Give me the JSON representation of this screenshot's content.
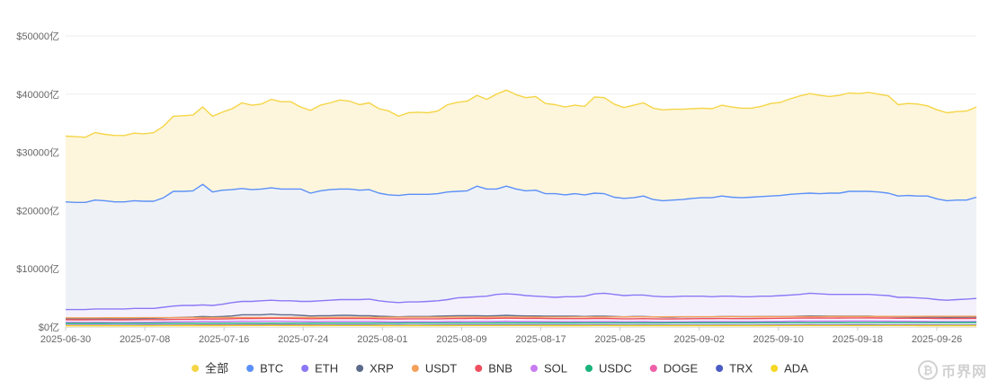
{
  "watermark": {
    "text": "币界网",
    "icon": "bitcoin-logo-icon"
  },
  "chart_data": {
    "type": "area",
    "y_unit": "亿",
    "y_tick_labels": [
      "$0亿",
      "$10000亿",
      "$20000亿",
      "$30000亿",
      "$40000亿",
      "$50000亿"
    ],
    "y_ticks": [
      0,
      10000,
      20000,
      30000,
      40000,
      50000
    ],
    "ylim": [
      0,
      50000
    ],
    "x_tick_labels": [
      "2025-06-30",
      "2025-07-08",
      "2025-07-16",
      "2025-07-24",
      "2025-08-01",
      "2025-08-09",
      "2025-08-17",
      "2025-08-25",
      "2025-09-02",
      "2025-09-10",
      "2025-09-18",
      "2025-09-26"
    ],
    "x_start": "2025-06-30",
    "x_end": "2025-09-30",
    "grid": true,
    "legend_position": "bottom",
    "series": [
      {
        "name": "全部",
        "color": "#f5d547",
        "fill": "#fdf6dc",
        "values": [
          32800,
          32700,
          32600,
          33400,
          33100,
          32900,
          32900,
          33300,
          33200,
          33400,
          34500,
          36200,
          36300,
          36400,
          37800,
          36200,
          36900,
          37500,
          38500,
          38100,
          38300,
          39100,
          38700,
          38700,
          37800,
          37200,
          38100,
          38500,
          39000,
          38800,
          38200,
          38500,
          37500,
          37100,
          36200,
          36800,
          36900,
          36800,
          37100,
          38200,
          38600,
          38800,
          39800,
          39100,
          40000,
          40700,
          39900,
          39400,
          39600,
          38400,
          38200,
          37800,
          38100,
          37900,
          39500,
          39400,
          38300,
          37700,
          38100,
          38500,
          37600,
          37300,
          37400,
          37400,
          37500,
          37600,
          37500,
          38100,
          37800,
          37600,
          37600,
          37900,
          38400,
          38600,
          39200,
          39700,
          40100,
          39800,
          39600,
          39800,
          40200,
          40100,
          40300,
          40000,
          39700,
          38200,
          38400,
          38300,
          38000,
          37300,
          36800,
          37000,
          37100,
          37800
        ]
      },
      {
        "name": "BTC",
        "color": "#5b8ff9",
        "fill": "#eef2f7",
        "values": [
          21500,
          21400,
          21400,
          21800,
          21700,
          21500,
          21500,
          21700,
          21600,
          21600,
          22200,
          23300,
          23300,
          23400,
          24500,
          23200,
          23500,
          23600,
          23800,
          23600,
          23700,
          23900,
          23700,
          23700,
          23700,
          23000,
          23400,
          23600,
          23700,
          23700,
          23500,
          23600,
          23000,
          22700,
          22600,
          22800,
          22800,
          22800,
          22900,
          23200,
          23300,
          23400,
          24200,
          23700,
          23700,
          24200,
          23700,
          23400,
          23500,
          22900,
          22900,
          22700,
          22900,
          22700,
          23000,
          22900,
          22300,
          22100,
          22200,
          22500,
          21900,
          21700,
          21800,
          21900,
          22100,
          22200,
          22200,
          22500,
          22300,
          22200,
          22300,
          22400,
          22500,
          22600,
          22800,
          22900,
          23000,
          22900,
          23000,
          23000,
          23300,
          23300,
          23300,
          23200,
          23000,
          22500,
          22600,
          22500,
          22500,
          22000,
          21700,
          21800,
          21800,
          22300
        ]
      },
      {
        "name": "ETH",
        "color": "#8b78f6",
        "fill": "#f4f1fd",
        "values": [
          3000,
          3000,
          3000,
          3100,
          3100,
          3100,
          3100,
          3200,
          3200,
          3200,
          3400,
          3600,
          3700,
          3700,
          3800,
          3700,
          3900,
          4200,
          4400,
          4400,
          4500,
          4600,
          4500,
          4500,
          4400,
          4400,
          4500,
          4600,
          4700,
          4700,
          4700,
          4800,
          4500,
          4300,
          4200,
          4300,
          4300,
          4400,
          4500,
          4700,
          5000,
          5100,
          5200,
          5300,
          5600,
          5700,
          5600,
          5400,
          5300,
          5200,
          5100,
          5200,
          5200,
          5300,
          5700,
          5800,
          5600,
          5400,
          5500,
          5500,
          5300,
          5200,
          5200,
          5300,
          5300,
          5300,
          5200,
          5300,
          5300,
          5200,
          5200,
          5300,
          5300,
          5400,
          5500,
          5600,
          5800,
          5700,
          5600,
          5600,
          5600,
          5600,
          5600,
          5500,
          5400,
          5100,
          5100,
          5000,
          4900,
          4700,
          4600,
          4700,
          4800,
          4900
        ]
      },
      {
        "name": "XRP",
        "color": "#5d6b8a",
        "fill": "none",
        "values": [
          1400,
          1400,
          1400,
          1400,
          1400,
          1400,
          1400,
          1400,
          1450,
          1500,
          1550,
          1600,
          1650,
          1700,
          1800,
          1750,
          1800,
          1900,
          2100,
          2100,
          2100,
          2200,
          2100,
          2100,
          2000,
          1900,
          1950,
          1950,
          2000,
          2000,
          1950,
          1950,
          1850,
          1800,
          1750,
          1800,
          1800,
          1800,
          1850,
          1900,
          1950,
          1950,
          1950,
          1900,
          1950,
          2000,
          1950,
          1900,
          1900,
          1850,
          1850,
          1850,
          1850,
          1800,
          1850,
          1850,
          1800,
          1750,
          1800,
          1800,
          1750,
          1700,
          1700,
          1750,
          1750,
          1750,
          1750,
          1800,
          1800,
          1780,
          1780,
          1800,
          1800,
          1800,
          1800,
          1850,
          1900,
          1880,
          1850,
          1850,
          1850,
          1850,
          1850,
          1800,
          1800,
          1750,
          1750,
          1700,
          1700,
          1680,
          1650,
          1660,
          1680,
          1700
        ]
      },
      {
        "name": "USDT",
        "color": "#f6a15a",
        "fill": "none",
        "values": [
          1580,
          1580,
          1580,
          1580,
          1585,
          1590,
          1590,
          1595,
          1600,
          1600,
          1605,
          1610,
          1610,
          1615,
          1620,
          1620,
          1625,
          1625,
          1630,
          1630,
          1635,
          1640,
          1640,
          1645,
          1645,
          1650,
          1650,
          1655,
          1660,
          1660,
          1665,
          1665,
          1670,
          1670,
          1675,
          1675,
          1680,
          1680,
          1685,
          1690,
          1690,
          1695,
          1695,
          1700,
          1700,
          1705,
          1710,
          1710,
          1715,
          1715,
          1720,
          1720,
          1725,
          1730,
          1730,
          1735,
          1735,
          1740,
          1740,
          1745,
          1750,
          1750,
          1755,
          1755,
          1760,
          1760,
          1765,
          1770,
          1770,
          1775,
          1775,
          1780,
          1780,
          1785,
          1790,
          1790,
          1795,
          1795,
          1800,
          1800,
          1805,
          1810,
          1810,
          1815,
          1815,
          1820,
          1820,
          1825,
          1830,
          1830,
          1835,
          1835,
          1840,
          1840
        ]
      },
      {
        "name": "BNB",
        "color": "#ef4f5f",
        "fill": "none",
        "values": [
          1250,
          1240,
          1240,
          1250,
          1250,
          1240,
          1240,
          1250,
          1260,
          1260,
          1270,
          1300,
          1320,
          1330,
          1400,
          1360,
          1380,
          1420,
          1480,
          1470,
          1480,
          1500,
          1490,
          1480,
          1450,
          1420,
          1440,
          1450,
          1460,
          1460,
          1450,
          1450,
          1420,
          1400,
          1390,
          1400,
          1400,
          1400,
          1410,
          1430,
          1450,
          1460,
          1490,
          1470,
          1500,
          1520,
          1500,
          1480,
          1490,
          1450,
          1440,
          1430,
          1440,
          1430,
          1470,
          1470,
          1430,
          1400,
          1410,
          1430,
          1400,
          1380,
          1390,
          1400,
          1420,
          1430,
          1430,
          1450,
          1440,
          1440,
          1440,
          1460,
          1480,
          1490,
          1510,
          1530,
          1550,
          1540,
          1530,
          1540,
          1560,
          1560,
          1570,
          1550,
          1540,
          1500,
          1510,
          1500,
          1490,
          1470,
          1450,
          1460,
          1460,
          1480
        ]
      },
      {
        "name": "SOL",
        "color": "#c77cf0",
        "fill": "none",
        "values": [
          800,
          800,
          790,
          800,
          800,
          790,
          790,
          800,
          810,
          820,
          850,
          880,
          900,
          910,
          950,
          920,
          930,
          950,
          980,
          970,
          980,
          990,
          980,
          970,
          950,
          930,
          940,
          950,
          960,
          960,
          950,
          950,
          920,
          900,
          880,
          890,
          890,
          890,
          900,
          920,
          930,
          940,
          960,
          950,
          960,
          980,
          960,
          950,
          950,
          930,
          920,
          910,
          920,
          910,
          940,
          940,
          920,
          900,
          910,
          920,
          900,
          880,
          890,
          900,
          910,
          920,
          920,
          930,
          930,
          920,
          920,
          930,
          950,
          960,
          980,
          1000,
          1020,
          1010,
          1000,
          1010,
          1030,
          1030,
          1040,
          1020,
          1010,
          980,
          980,
          970,
          960,
          940,
          920,
          930,
          930,
          950
        ]
      },
      {
        "name": "USDC",
        "color": "#19b37b",
        "fill": "none",
        "values": [
          620,
          620,
          620,
          620,
          620,
          625,
          625,
          625,
          630,
          630,
          630,
          635,
          635,
          635,
          640,
          640,
          640,
          645,
          645,
          645,
          650,
          650,
          650,
          655,
          655,
          655,
          660,
          660,
          660,
          665,
          665,
          665,
          670,
          670,
          670,
          675,
          675,
          675,
          680,
          680,
          680,
          685,
          685,
          685,
          690,
          690,
          690,
          695,
          695,
          695,
          700,
          700,
          700,
          705,
          705,
          705,
          710,
          710,
          710,
          715,
          715,
          715,
          720,
          720,
          720,
          725,
          725,
          725,
          730,
          730,
          730,
          735,
          735,
          735,
          740,
          740,
          740,
          745,
          745,
          745,
          750,
          750,
          750,
          755,
          755,
          755,
          760,
          760,
          760,
          765,
          765,
          765,
          770,
          770
        ]
      },
      {
        "name": "DOGE",
        "color": "#ef5fa7",
        "fill": "none",
        "values": [
          300,
          300,
          300,
          300,
          300,
          300,
          300,
          300,
          310,
          310,
          320,
          330,
          340,
          340,
          360,
          350,
          350,
          360,
          370,
          370,
          370,
          380,
          370,
          370,
          360,
          350,
          350,
          360,
          360,
          360,
          350,
          350,
          340,
          330,
          330,
          330,
          330,
          330,
          340,
          340,
          350,
          350,
          360,
          350,
          360,
          360,
          360,
          350,
          350,
          340,
          340,
          340,
          340,
          340,
          350,
          350,
          340,
          330,
          330,
          340,
          330,
          320,
          320,
          330,
          330,
          330,
          330,
          340,
          340,
          330,
          330,
          340,
          340,
          350,
          350,
          360,
          370,
          360,
          360,
          360,
          370,
          370,
          370,
          360,
          360,
          350,
          350,
          350,
          340,
          340,
          330,
          330,
          330,
          340
        ]
      },
      {
        "name": "TRX",
        "color": "#4b5cc4",
        "fill": "none",
        "values": [
          250,
          250,
          250,
          250,
          250,
          250,
          255,
          255,
          255,
          260,
          260,
          265,
          270,
          270,
          275,
          275,
          275,
          280,
          285,
          285,
          290,
          290,
          290,
          295,
          295,
          295,
          300,
          300,
          305,
          305,
          305,
          305,
          300,
          300,
          300,
          300,
          300,
          305,
          305,
          310,
          310,
          310,
          315,
          315,
          320,
          320,
          320,
          320,
          320,
          315,
          315,
          315,
          315,
          315,
          320,
          320,
          320,
          315,
          315,
          315,
          315,
          310,
          310,
          315,
          315,
          315,
          315,
          320,
          320,
          320,
          320,
          320,
          320,
          325,
          325,
          330,
          330,
          330,
          330,
          330,
          335,
          335,
          335,
          335,
          330,
          330,
          330,
          330,
          325,
          325,
          320,
          320,
          320,
          325
        ]
      },
      {
        "name": "ADA",
        "color": "#f4d825",
        "fill": "none",
        "values": [
          200,
          200,
          200,
          200,
          200,
          200,
          200,
          200,
          205,
          205,
          210,
          220,
          225,
          225,
          235,
          230,
          230,
          240,
          250,
          250,
          250,
          255,
          250,
          250,
          240,
          235,
          240,
          240,
          245,
          245,
          240,
          240,
          230,
          225,
          220,
          225,
          225,
          225,
          230,
          235,
          240,
          240,
          245,
          240,
          245,
          250,
          245,
          240,
          240,
          235,
          235,
          230,
          235,
          230,
          240,
          240,
          235,
          230,
          230,
          235,
          230,
          225,
          225,
          230,
          230,
          230,
          230,
          235,
          235,
          230,
          230,
          235,
          235,
          240,
          240,
          245,
          250,
          245,
          245,
          245,
          250,
          250,
          250,
          245,
          245,
          240,
          240,
          235,
          235,
          230,
          225,
          225,
          225,
          230
        ]
      }
    ]
  }
}
